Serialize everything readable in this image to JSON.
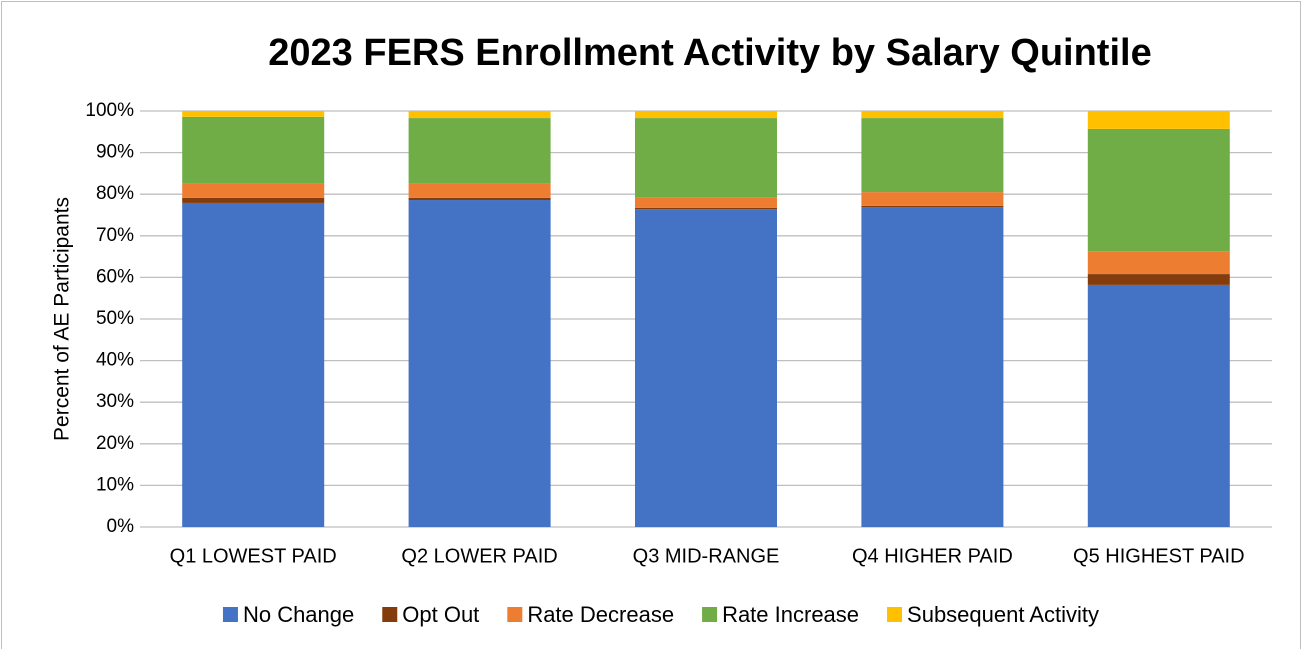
{
  "chart_data": {
    "type": "stacked_bar",
    "title": "2023 FERS Enrollment Activity by Salary Quintile",
    "y_label": "Percent of AE Participants",
    "categories": [
      "Q1 LOWEST PAID",
      "Q2 LOWER PAID",
      "Q3 MID-RANGE",
      "Q4 HIGHER PAID",
      "Q5 HIGHEST PAID"
    ],
    "series": [
      {
        "name": "No Change",
        "color": "#4472c4",
        "values": [
          77.9,
          78.6,
          76.4,
          76.9,
          58.2
        ]
      },
      {
        "name": "Opt Out",
        "color": "#843c0c",
        "values": [
          1.2,
          0.5,
          0.3,
          0.3,
          2.6
        ]
      },
      {
        "name": "Rate Decrease",
        "color": "#ed7d31",
        "values": [
          3.4,
          3.4,
          2.6,
          3.3,
          5.5
        ]
      },
      {
        "name": "Rate Increase",
        "color": "#70ad47",
        "values": [
          16.1,
          15.8,
          19.0,
          17.8,
          29.4
        ]
      },
      {
        "name": "Subsequent Activity",
        "color": "#ffc000",
        "values": [
          1.4,
          1.7,
          1.7,
          1.7,
          4.3
        ]
      }
    ],
    "ylim": [
      0,
      100
    ],
    "yticks": [
      {
        "value": 0,
        "label": "0%"
      },
      {
        "value": 10,
        "label": "10%"
      },
      {
        "value": 20,
        "label": "20%"
      },
      {
        "value": 30,
        "label": "30%"
      },
      {
        "value": 40,
        "label": "40%"
      },
      {
        "value": 50,
        "label": "50%"
      },
      {
        "value": 60,
        "label": "60%"
      },
      {
        "value": 70,
        "label": "70%"
      },
      {
        "value": 80,
        "label": "80%"
      },
      {
        "value": 90,
        "label": "90%"
      },
      {
        "value": 100,
        "label": "100%"
      }
    ],
    "grid": true,
    "legend": "bottom"
  }
}
